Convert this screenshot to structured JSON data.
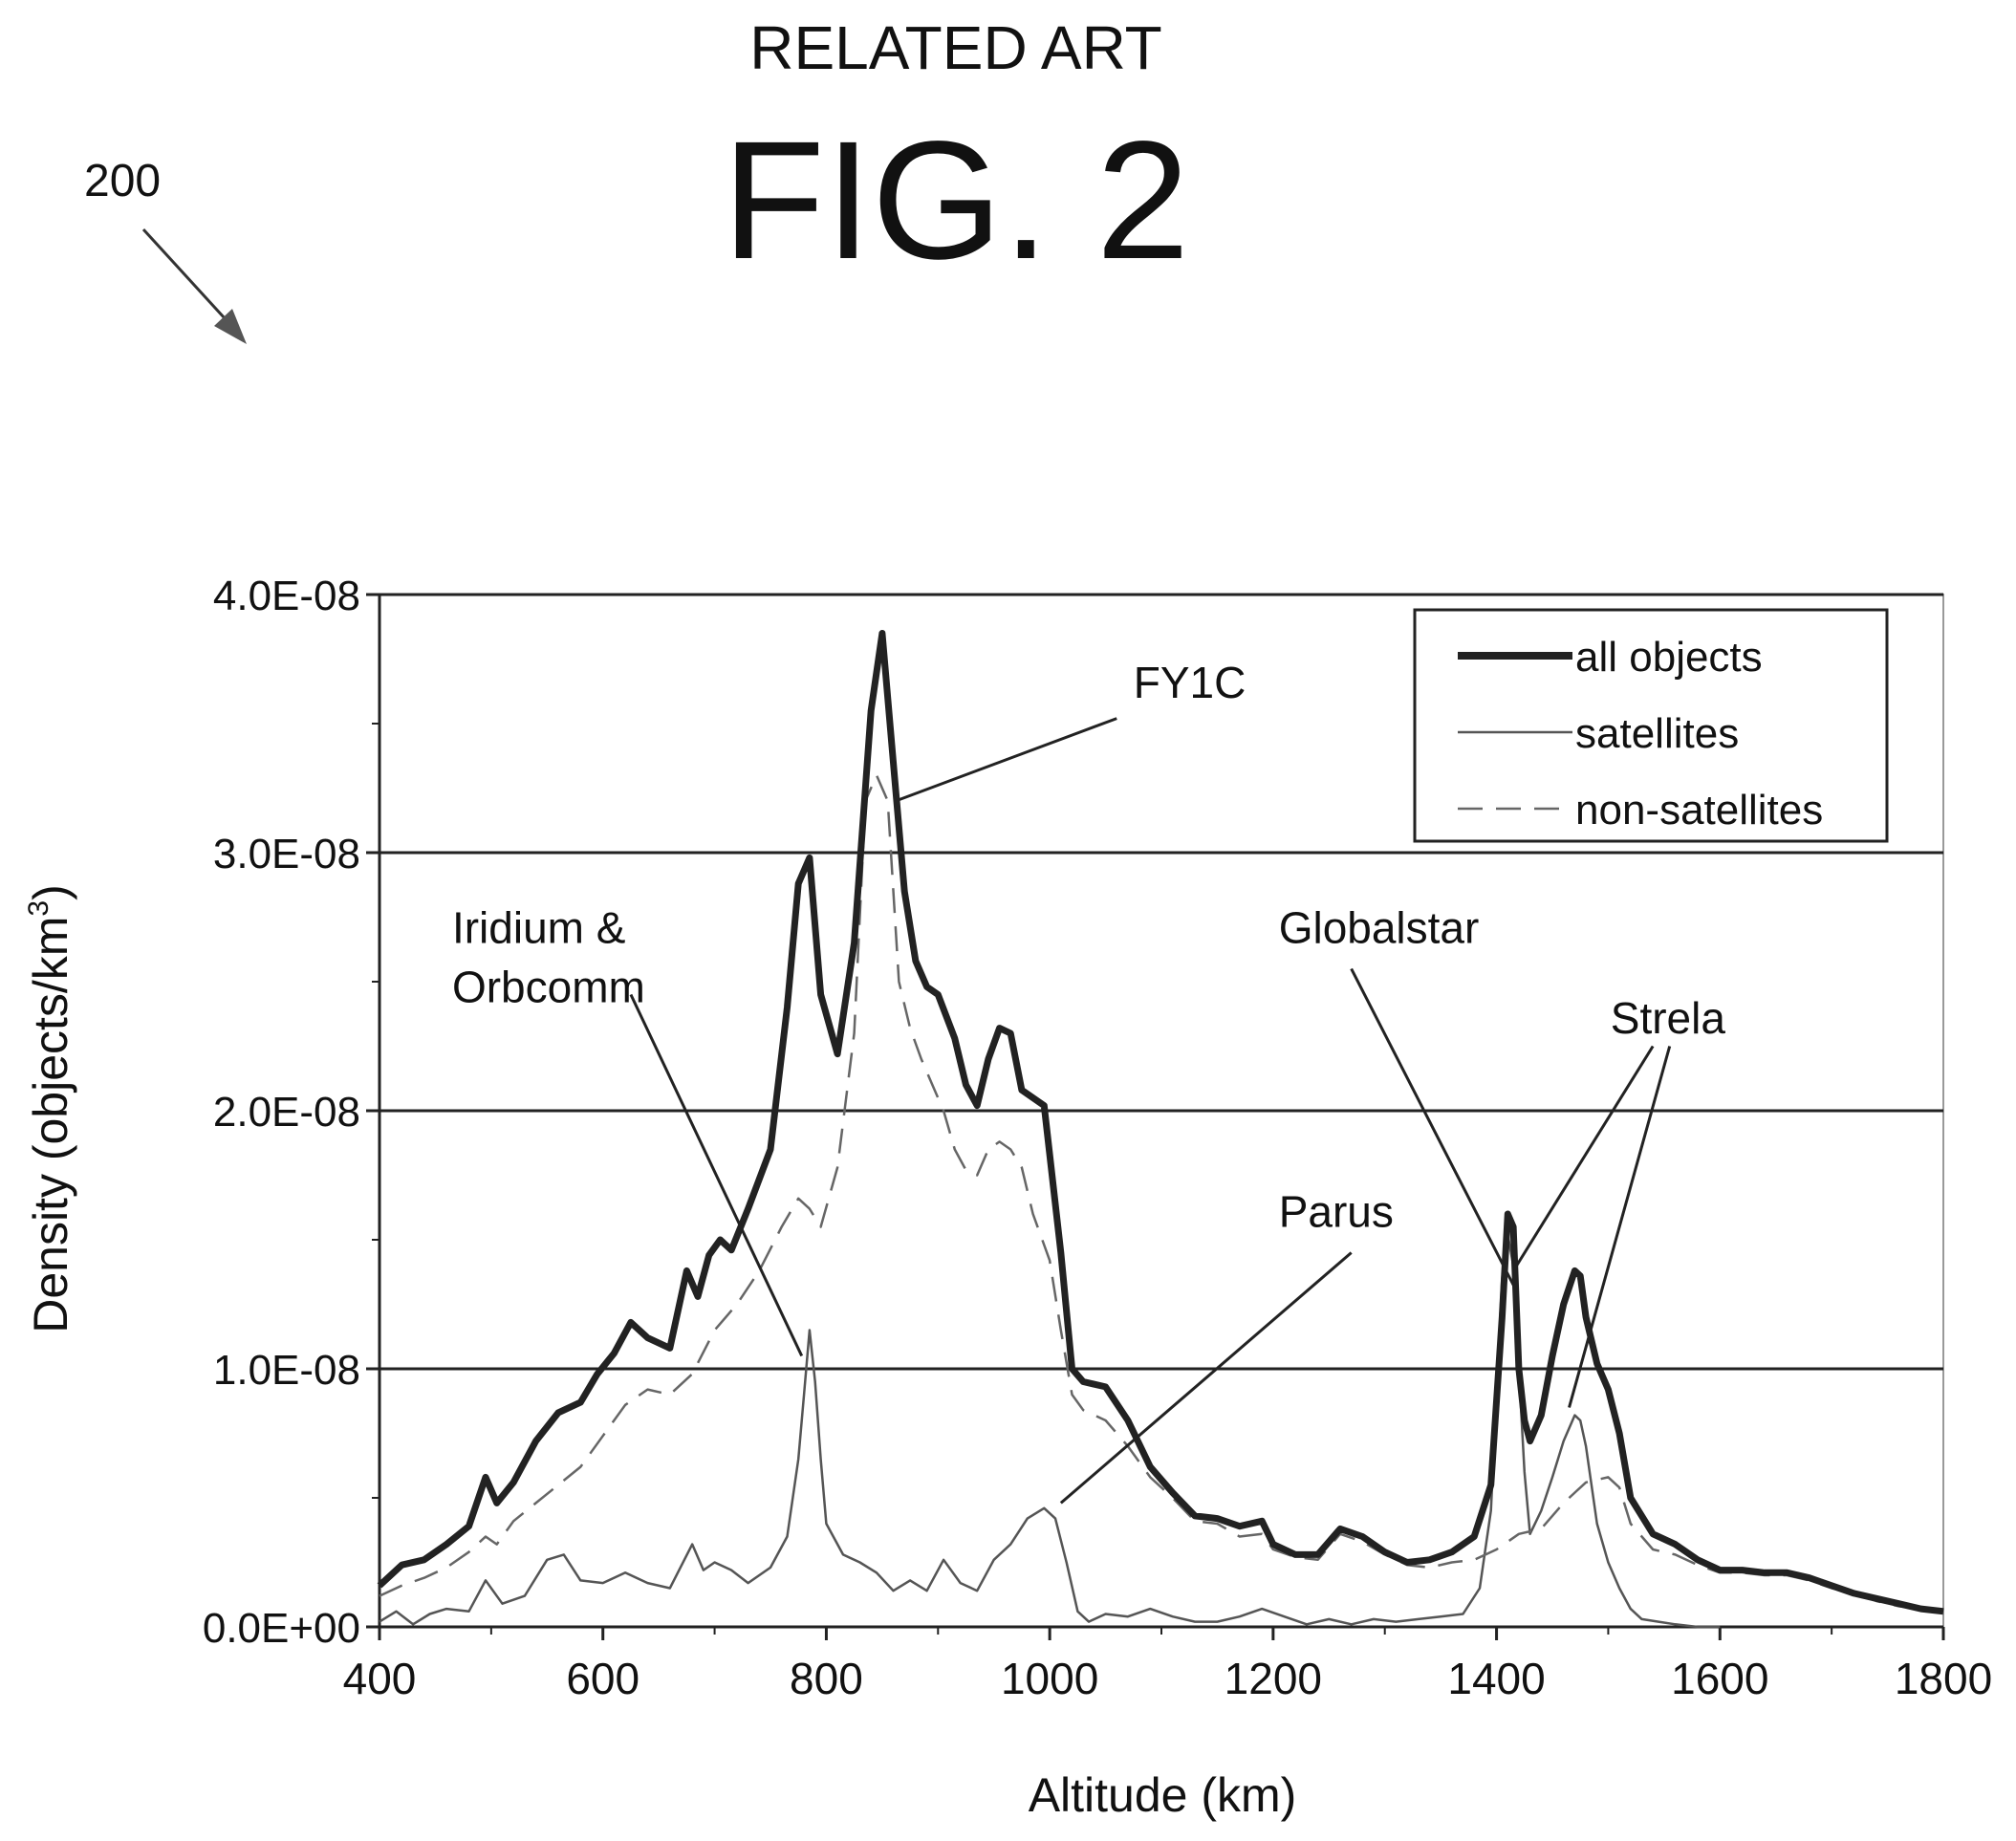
{
  "header": {
    "related_art": "RELATED ART",
    "fig_label": "FIG. 2",
    "ref_numeral": "200"
  },
  "chart_data": {
    "type": "line",
    "xlabel": "Altitude (km)",
    "ylabel_main": "Density (objects/km",
    "ylabel_sup": "3",
    "ylabel_close": ")",
    "xlim": [
      400,
      1800
    ],
    "ylim": [
      0,
      4e-08
    ],
    "x_ticks": [
      400,
      600,
      800,
      1000,
      1200,
      1400,
      1600,
      1800
    ],
    "x_tick_labels": [
      "400",
      "600",
      "800",
      "1000",
      "1200",
      "1400",
      "1600",
      "1800"
    ],
    "y_ticks": [
      0,
      1e-08,
      2e-08,
      3e-08,
      4e-08
    ],
    "y_tick_labels": [
      "0.0E+00",
      "1.0E-08",
      "2.0E-08",
      "3.0E-08",
      "4.0E-08"
    ],
    "grid": "horizontal major lines",
    "legend_position": "top-right",
    "series": [
      {
        "name": "all objects",
        "style": "thick",
        "x": [
          400,
          420,
          440,
          460,
          480,
          495,
          505,
          520,
          540,
          560,
          580,
          595,
          610,
          625,
          640,
          660,
          675,
          685,
          695,
          705,
          715,
          730,
          750,
          765,
          775,
          785,
          795,
          810,
          825,
          840,
          850,
          860,
          870,
          880,
          890,
          900,
          915,
          925,
          935,
          945,
          955,
          965,
          975,
          985,
          995,
          1010,
          1020,
          1030,
          1050,
          1070,
          1090,
          1110,
          1130,
          1150,
          1170,
          1190,
          1200,
          1220,
          1240,
          1260,
          1280,
          1300,
          1320,
          1340,
          1360,
          1380,
          1395,
          1405,
          1410,
          1415,
          1420,
          1425,
          1430,
          1440,
          1450,
          1460,
          1470,
          1475,
          1480,
          1490,
          1500,
          1510,
          1520,
          1540,
          1560,
          1580,
          1600,
          1620,
          1640,
          1660,
          1680,
          1700,
          1720,
          1740,
          1760,
          1780,
          1800
        ],
        "y": [
          1.6e-09,
          2.4e-09,
          2.6e-09,
          3.2e-09,
          3.9e-09,
          5.8e-09,
          4.8e-09,
          5.6e-09,
          7.2e-09,
          8.3e-09,
          8.7e-09,
          9.8e-09,
          1.06e-08,
          1.18e-08,
          1.12e-08,
          1.08e-08,
          1.38e-08,
          1.28e-08,
          1.44e-08,
          1.5e-08,
          1.46e-08,
          1.62e-08,
          1.85e-08,
          2.4e-08,
          2.88e-08,
          2.98e-08,
          2.45e-08,
          2.22e-08,
          2.65e-08,
          3.55e-08,
          3.85e-08,
          3.35e-08,
          2.85e-08,
          2.58e-08,
          2.48e-08,
          2.45e-08,
          2.28e-08,
          2.1e-08,
          2.02e-08,
          2.2e-08,
          2.32e-08,
          2.3e-08,
          2.08e-08,
          2.05e-08,
          2.02e-08,
          1.45e-08,
          1e-08,
          9.5e-09,
          9.3e-09,
          8e-09,
          6.2e-09,
          5.2e-09,
          4.3e-09,
          4.2e-09,
          3.9e-09,
          4.1e-09,
          3.2e-09,
          2.8e-09,
          2.8e-09,
          3.8e-09,
          3.5e-09,
          2.9e-09,
          2.5e-09,
          2.6e-09,
          2.9e-09,
          3.5e-09,
          5.5e-09,
          1.2e-08,
          1.6e-08,
          1.55e-08,
          1e-08,
          8e-09,
          7.2e-09,
          8.2e-09,
          1.05e-08,
          1.25e-08,
          1.38e-08,
          1.36e-08,
          1.2e-08,
          1.02e-08,
          9.2e-09,
          7.5e-09,
          5e-09,
          3.6e-09,
          3.2e-09,
          2.6e-09,
          2.2e-09,
          2.2e-09,
          2.1e-09,
          2.1e-09,
          1.9e-09,
          1.6e-09,
          1.3e-09,
          1.1e-09,
          9e-10,
          7e-10,
          6e-10
        ]
      },
      {
        "name": "satellites",
        "style": "thin",
        "x": [
          400,
          415,
          430,
          445,
          460,
          480,
          495,
          510,
          530,
          550,
          565,
          580,
          600,
          620,
          640,
          660,
          680,
          690,
          700,
          715,
          730,
          750,
          765,
          775,
          780,
          785,
          790,
          795,
          800,
          815,
          830,
          845,
          860,
          875,
          890,
          905,
          920,
          935,
          950,
          965,
          980,
          995,
          1005,
          1015,
          1025,
          1035,
          1050,
          1070,
          1090,
          1110,
          1130,
          1150,
          1170,
          1190,
          1210,
          1230,
          1250,
          1270,
          1290,
          1310,
          1330,
          1350,
          1370,
          1385,
          1395,
          1400,
          1405,
          1410,
          1415,
          1420,
          1425,
          1430,
          1440,
          1450,
          1460,
          1470,
          1475,
          1480,
          1485,
          1490,
          1500,
          1510,
          1520,
          1530,
          1545,
          1560,
          1580,
          1600
        ],
        "y": [
          2e-10,
          6e-10,
          1e-10,
          5e-10,
          7e-10,
          6e-10,
          1.8e-09,
          9e-10,
          1.2e-09,
          2.6e-09,
          2.8e-09,
          1.8e-09,
          1.7e-09,
          2.1e-09,
          1.7e-09,
          1.5e-09,
          3.2e-09,
          2.2e-09,
          2.5e-09,
          2.2e-09,
          1.7e-09,
          2.3e-09,
          3.5e-09,
          6.5e-09,
          9e-09,
          1.15e-08,
          9.5e-09,
          6.5e-09,
          4e-09,
          2.8e-09,
          2.5e-09,
          2.1e-09,
          1.4e-09,
          1.8e-09,
          1.4e-09,
          2.6e-09,
          1.7e-09,
          1.4e-09,
          2.6e-09,
          3.2e-09,
          4.2e-09,
          4.6e-09,
          4.2e-09,
          2.5e-09,
          6e-10,
          2e-10,
          5e-10,
          4e-10,
          7e-10,
          4e-10,
          2e-10,
          2e-10,
          4e-10,
          7e-10,
          4e-10,
          1e-10,
          3e-10,
          1e-10,
          3e-10,
          2e-10,
          3e-10,
          4e-10,
          5e-10,
          1.5e-09,
          4.5e-09,
          9e-09,
          1.35e-08,
          1.52e-08,
          1.4e-08,
          1e-08,
          6e-09,
          3.6e-09,
          4.5e-09,
          5.8e-09,
          7.2e-09,
          8.2e-09,
          8e-09,
          7e-09,
          5.5e-09,
          4e-09,
          2.5e-09,
          1.5e-09,
          7e-10,
          3e-10,
          2e-10,
          1e-10,
          0,
          0
        ]
      },
      {
        "name": "non-satellites",
        "style": "dashed",
        "x": [
          400,
          420,
          440,
          460,
          480,
          495,
          505,
          520,
          540,
          560,
          580,
          600,
          620,
          640,
          660,
          680,
          700,
          720,
          740,
          760,
          775,
          785,
          795,
          810,
          825,
          835,
          845,
          855,
          865,
          875,
          885,
          895,
          905,
          915,
          925,
          935,
          945,
          955,
          965,
          975,
          985,
          1000,
          1010,
          1020,
          1030,
          1050,
          1070,
          1090,
          1110,
          1130,
          1150,
          1170,
          1190,
          1200,
          1220,
          1240,
          1260,
          1280,
          1300,
          1320,
          1340,
          1360,
          1380,
          1400,
          1420,
          1440,
          1460,
          1480,
          1500,
          1510,
          1520,
          1540,
          1560,
          1580,
          1600,
          1620,
          1640,
          1660,
          1680,
          1700,
          1720,
          1740,
          1760,
          1780,
          1800
        ],
        "y": [
          1.2e-09,
          1.6e-09,
          1.9e-09,
          2.3e-09,
          2.9e-09,
          3.5e-09,
          3.2e-09,
          4.1e-09,
          4.8e-09,
          5.5e-09,
          6.2e-09,
          7.4e-09,
          8.6e-09,
          9.2e-09,
          9e-09,
          9.8e-09,
          1.15e-08,
          1.25e-08,
          1.38e-08,
          1.55e-08,
          1.66e-08,
          1.62e-08,
          1.55e-08,
          1.78e-08,
          2.3e-08,
          3.2e-08,
          3.3e-08,
          3.2e-08,
          2.5e-08,
          2.32e-08,
          2.2e-08,
          2.1e-08,
          2e-08,
          1.85e-08,
          1.77e-08,
          1.75e-08,
          1.85e-08,
          1.88e-08,
          1.85e-08,
          1.78e-08,
          1.6e-08,
          1.42e-08,
          1.15e-08,
          9e-09,
          8.4e-09,
          8e-09,
          7e-09,
          5.8e-09,
          5e-09,
          4.1e-09,
          4e-09,
          3.5e-09,
          3.6e-09,
          3e-09,
          2.7e-09,
          2.6e-09,
          3.6e-09,
          3.3e-09,
          2.8e-09,
          2.4e-09,
          2.3e-09,
          2.5e-09,
          2.6e-09,
          3e-09,
          3.6e-09,
          3.8e-09,
          4.8e-09,
          5.6e-09,
          5.8e-09,
          5.4e-09,
          4e-09,
          3e-09,
          2.8e-09,
          2.4e-09,
          2.1e-09,
          2.1e-09,
          2e-09,
          2e-09,
          1.8e-09,
          1.5e-09,
          1.3e-09,
          1e-09,
          8e-10,
          7e-10,
          6e-10
        ]
      }
    ],
    "annotations": [
      {
        "id": "fy1c",
        "lines": [
          "FY1C"
        ],
        "anchor_align": "start",
        "text_x": 1075,
        "text_y": 3.6e-08,
        "leaders": [
          [
            {
              "x": 1060,
              "y": 3.52e-08
            },
            {
              "x": 862,
              "y": 3.2e-08
            }
          ]
        ]
      },
      {
        "id": "iridium-orbcomm",
        "lines": [
          "Iridium &",
          "Orbcomm"
        ],
        "anchor_align": "start",
        "text_x": 465,
        "text_y": 2.65e-08,
        "leaders": [
          [
            {
              "x": 625,
              "y": 2.45e-08
            },
            {
              "x": 778,
              "y": 1.05e-08
            }
          ]
        ]
      },
      {
        "id": "globalstar",
        "lines": [
          "Globalstar"
        ],
        "anchor_align": "start",
        "text_x": 1205,
        "text_y": 2.65e-08,
        "leaders": [
          [
            {
              "x": 1270,
              "y": 2.55e-08
            },
            {
              "x": 1418,
              "y": 1.3e-08
            }
          ]
        ]
      },
      {
        "id": "strela",
        "lines": [
          "Strela"
        ],
        "anchor_align": "start",
        "text_x": 1502,
        "text_y": 2.3e-08,
        "leaders": [
          [
            {
              "x": 1540,
              "y": 2.25e-08
            },
            {
              "x": 1418,
              "y": 1.4e-08
            }
          ],
          [
            {
              "x": 1555,
              "y": 2.25e-08
            },
            {
              "x": 1465,
              "y": 8.5e-09
            }
          ]
        ]
      },
      {
        "id": "parus",
        "lines": [
          "Parus"
        ],
        "anchor_align": "start",
        "text_x": 1205,
        "text_y": 1.55e-08,
        "leaders": [
          [
            {
              "x": 1270,
              "y": 1.45e-08
            },
            {
              "x": 1010,
              "y": 4.8e-09
            }
          ]
        ]
      }
    ]
  }
}
